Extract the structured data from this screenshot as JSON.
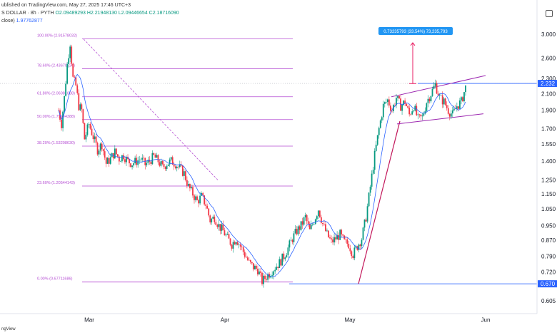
{
  "header": {
    "published": "ublished on TradingView.com, May 27, 2025 17:46 UTC+3",
    "symbol": "S DOLLAR · 8h · PYTH",
    "ohlc": "O2.09489293 H2.21948130 L2.09446654 C2.18716090",
    "indicator_label": "close)",
    "indicator_value": "1.97762877"
  },
  "footer": {
    "text": "ngView"
  },
  "colors": {
    "up": "#089981",
    "down": "#f23645",
    "fib": "#b54ed3",
    "ma": "#2962ff",
    "hline": "#2962ff",
    "trend": "#c2185b",
    "channel": "#9c27b0",
    "measure_box": "#2196f3",
    "measure_arrow": "#e91e63"
  },
  "chart_data": {
    "type": "candlestick",
    "title": "",
    "x_ticks": [
      "Mar",
      "Apr",
      "May",
      "Jun"
    ],
    "y_ticks": [
      "3.000",
      "2.600",
      "2.300",
      "2.100",
      "1.900",
      "1.700",
      "1.550",
      "1.400",
      "1.250",
      "1.150",
      "1.050",
      "0.950",
      "0.870",
      "0.790",
      "0.720",
      "0.605"
    ],
    "y_scale": "log",
    "fib_levels": [
      {
        "label": "100.00% (2.91578032)",
        "value": 2.91578032
      },
      {
        "label": "78.60% (2.43670624)",
        "value": 2.43670624
      },
      {
        "label": "61.80% (2.06081088)",
        "value": 2.06081088
      },
      {
        "label": "50.00% (1.79644388)",
        "value": 1.79644388
      },
      {
        "label": "38.20% (1.53208630)",
        "value": 1.5320863
      },
      {
        "label": "23.60% (1.20544143)",
        "value": 1.20544143
      },
      {
        "label": "0.00% (0.67711686)",
        "value": 0.67711686
      }
    ],
    "price_labels": [
      {
        "text": "2.232",
        "value": 2.232
      },
      {
        "text": "0.670",
        "value": 0.67
      }
    ],
    "measure_label": "0.73235793 (33.54%) 73,235,793",
    "moving_average": "blue line",
    "series_note": "8h candles, late Feb – late May 2025"
  }
}
